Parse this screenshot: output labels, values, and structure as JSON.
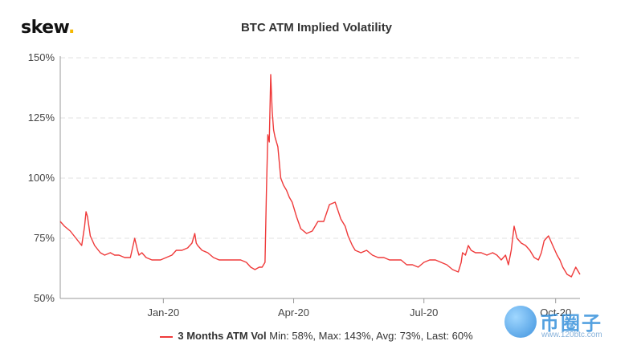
{
  "logo": {
    "text": "skew",
    "dot": "."
  },
  "chart_data": {
    "type": "line",
    "title": "BTC ATM Implied Volatility",
    "xlabel": "",
    "ylabel": "",
    "y_ticks": [
      "50%",
      "75%",
      "100%",
      "125%",
      "150%"
    ],
    "y_tick_values": [
      50,
      75,
      100,
      125,
      150
    ],
    "ylim": [
      50,
      150
    ],
    "x_ticks": [
      "Jan-20",
      "Apr-20",
      "Jul-20",
      "Oct-20"
    ],
    "x_tick_dates": [
      "2020-01-01",
      "2020-04-01",
      "2020-07-01",
      "2020-10-01"
    ],
    "xlim": [
      "2019-10-21",
      "2020-10-18"
    ],
    "grid": true,
    "legend_position": "bottom",
    "series": [
      {
        "name": "3 Months ATM Vol",
        "color": "#ef3a3a",
        "x": [
          "2019-10-21",
          "2019-10-24",
          "2019-10-28",
          "2019-11-01",
          "2019-11-05",
          "2019-11-07",
          "2019-11-08",
          "2019-11-09",
          "2019-11-11",
          "2019-11-14",
          "2019-11-18",
          "2019-11-21",
          "2019-11-25",
          "2019-11-28",
          "2019-12-01",
          "2019-12-05",
          "2019-12-09",
          "2019-12-12",
          "2019-12-14",
          "2019-12-15",
          "2019-12-17",
          "2019-12-20",
          "2019-12-24",
          "2019-12-27",
          "2019-12-30",
          "2020-01-03",
          "2020-01-07",
          "2020-01-10",
          "2020-01-14",
          "2020-01-18",
          "2020-01-21",
          "2020-01-23",
          "2020-01-24",
          "2020-01-25",
          "2020-01-28",
          "2020-02-01",
          "2020-02-05",
          "2020-02-09",
          "2020-02-12",
          "2020-02-16",
          "2020-02-20",
          "2020-02-24",
          "2020-02-28",
          "2020-03-02",
          "2020-03-05",
          "2020-03-08",
          "2020-03-10",
          "2020-03-12",
          "2020-03-13",
          "2020-03-14",
          "2020-03-15",
          "2020-03-16",
          "2020-03-17",
          "2020-03-18",
          "2020-03-19",
          "2020-03-21",
          "2020-03-23",
          "2020-03-25",
          "2020-03-27",
          "2020-03-29",
          "2020-03-31",
          "2020-04-03",
          "2020-04-06",
          "2020-04-10",
          "2020-04-14",
          "2020-04-18",
          "2020-04-22",
          "2020-04-26",
          "2020-04-30",
          "2020-05-04",
          "2020-05-07",
          "2020-05-09",
          "2020-05-12",
          "2020-05-14",
          "2020-05-18",
          "2020-05-22",
          "2020-05-26",
          "2020-05-30",
          "2020-06-03",
          "2020-06-07",
          "2020-06-11",
          "2020-06-15",
          "2020-06-19",
          "2020-06-23",
          "2020-06-27",
          "2020-07-01",
          "2020-07-05",
          "2020-07-09",
          "2020-07-13",
          "2020-07-17",
          "2020-07-21",
          "2020-07-25",
          "2020-07-27",
          "2020-07-28",
          "2020-07-30",
          "2020-08-01",
          "2020-08-03",
          "2020-08-06",
          "2020-08-10",
          "2020-08-14",
          "2020-08-18",
          "2020-08-21",
          "2020-08-24",
          "2020-08-27",
          "2020-08-29",
          "2020-08-31",
          "2020-09-02",
          "2020-09-04",
          "2020-09-07",
          "2020-09-10",
          "2020-09-13",
          "2020-09-16",
          "2020-09-19",
          "2020-09-21",
          "2020-09-23",
          "2020-09-26",
          "2020-09-29",
          "2020-10-02",
          "2020-10-04",
          "2020-10-06",
          "2020-10-09",
          "2020-10-12",
          "2020-10-15",
          "2020-10-18"
        ],
        "values": [
          82,
          80,
          78,
          75,
          72,
          80,
          86,
          84,
          76,
          72,
          69,
          68,
          69,
          68,
          68,
          67,
          67,
          75,
          70,
          68,
          69,
          67,
          66,
          66,
          66,
          67,
          68,
          70,
          70,
          71,
          73,
          77,
          73,
          72,
          70,
          69,
          67,
          66,
          66,
          66,
          66,
          66,
          65,
          63,
          62,
          63,
          63,
          65,
          95,
          118,
          115,
          143,
          128,
          120,
          117,
          113,
          100,
          97,
          95,
          92,
          90,
          84,
          79,
          77,
          78,
          82,
          82,
          89,
          90,
          83,
          80,
          76,
          72,
          70,
          69,
          70,
          68,
          67,
          67,
          66,
          66,
          66,
          64,
          64,
          63,
          65,
          66,
          66,
          65,
          64,
          62,
          61,
          65,
          69,
          68,
          72,
          70,
          69,
          69,
          68,
          69,
          68,
          66,
          68,
          64,
          70,
          80,
          75,
          73,
          72,
          70,
          67,
          66,
          69,
          74,
          76,
          72,
          68,
          66,
          63,
          60,
          59,
          63,
          60
        ]
      }
    ],
    "stats": {
      "min": "58%",
      "max": "143%",
      "avg": "73%",
      "last": "60%"
    }
  },
  "legend": {
    "series_label": "3 Months ATM Vol",
    "stats_text": "Min: 58%, Max: 143%, Avg: 73%, Last: 60%"
  },
  "watermark": {
    "text": "币圈子",
    "url": "www.120btc.com"
  }
}
